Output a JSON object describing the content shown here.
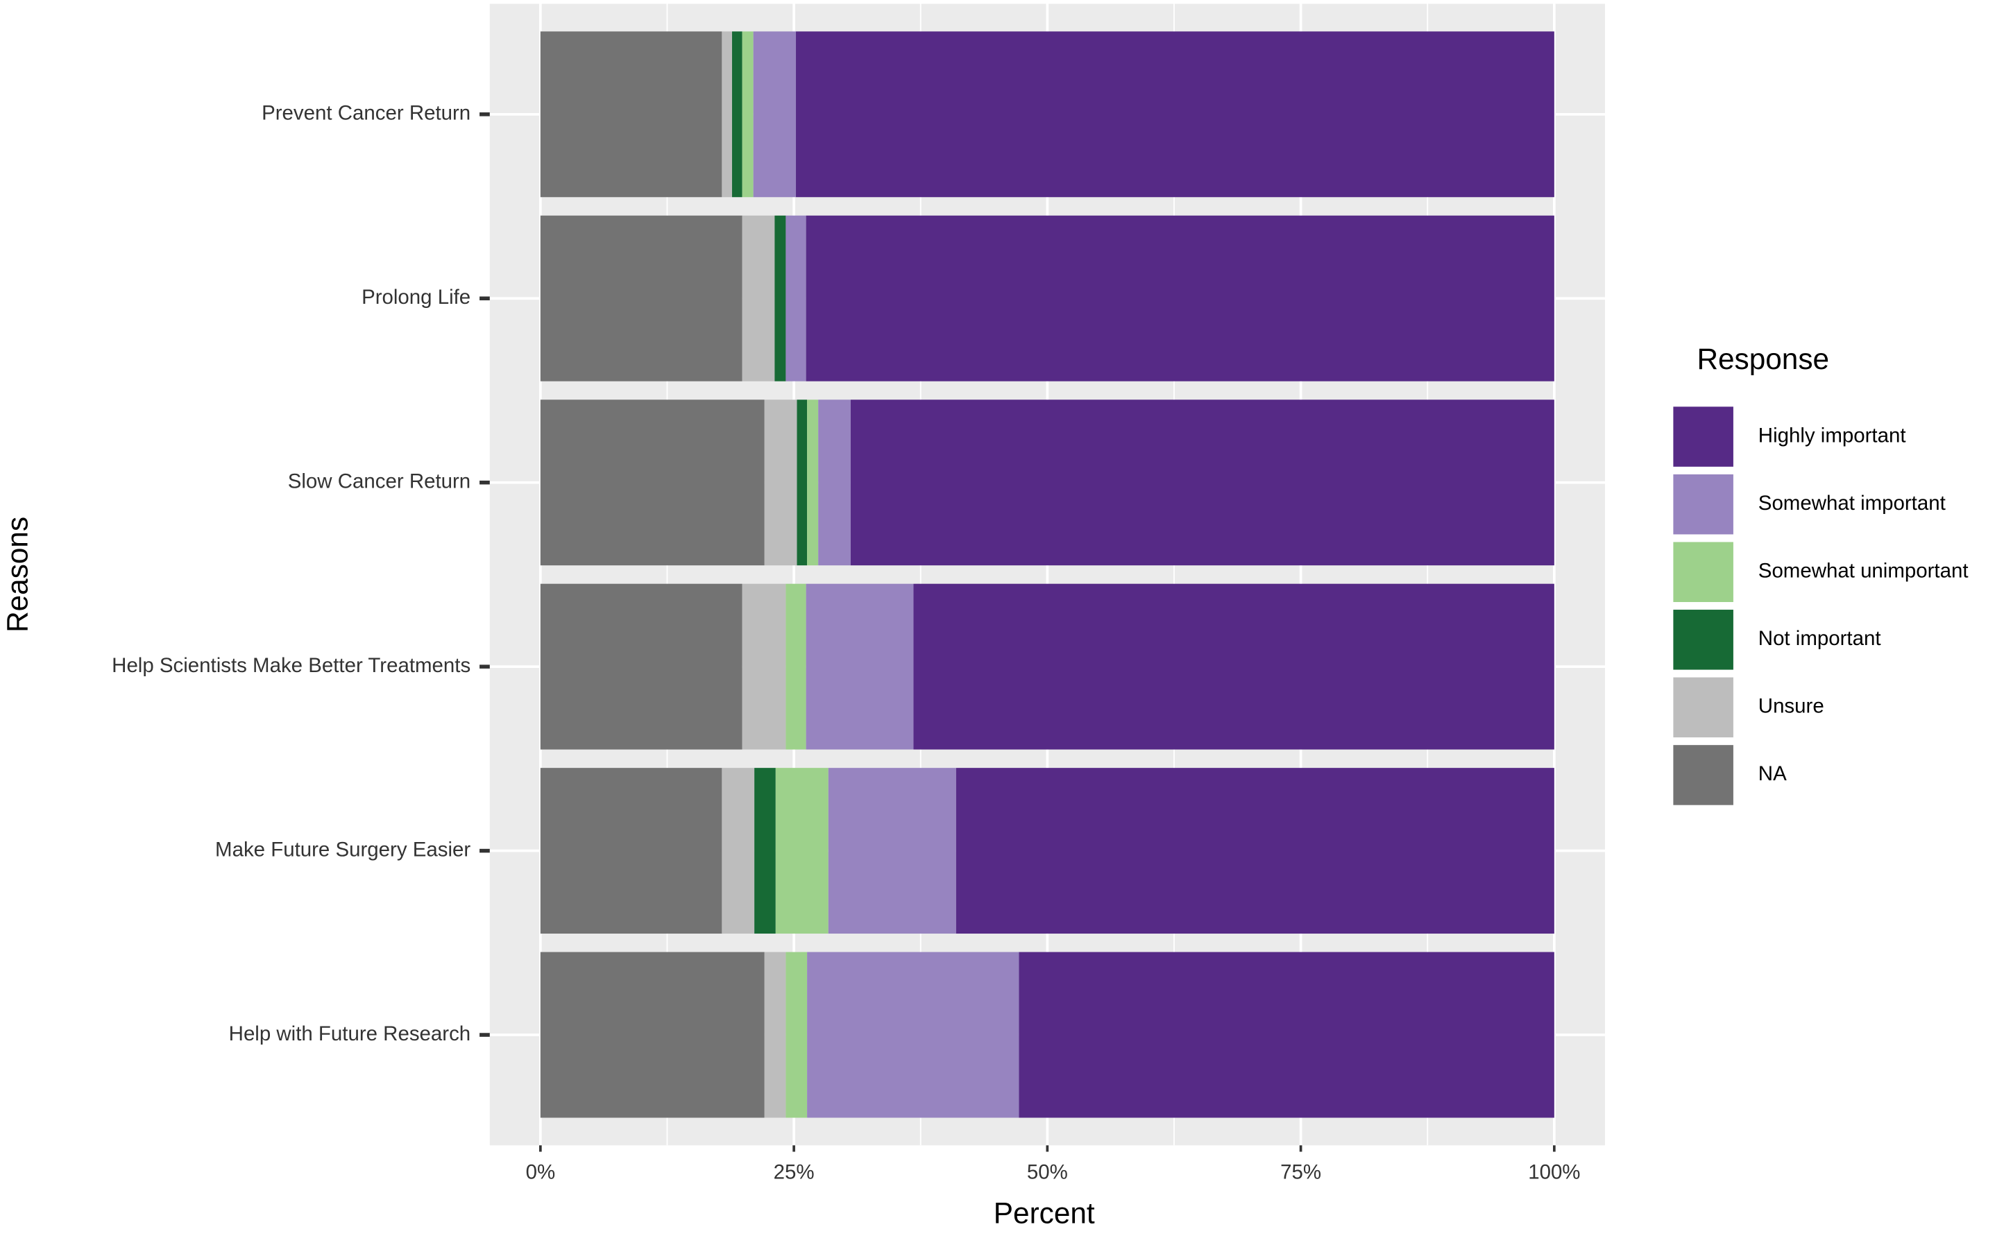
{
  "chart_data": {
    "type": "stacked-barh",
    "x_label": "Percent",
    "y_label": "Reasons",
    "legend_title": "Response",
    "categories": [
      "Prevent Cancer Return",
      "Prolong Life",
      "Slow Cancer Return",
      "Help Scientists Make Better Treatments",
      "Make Future Surgery Easier",
      "Help with Future Research"
    ],
    "series": [
      {
        "name": "Highly important",
        "color": "#562a86",
        "values": [
          74.8,
          73.8,
          69.4,
          63.2,
          59.0,
          52.8
        ]
      },
      {
        "name": "Somewhat important",
        "color": "#9784c0",
        "values": [
          4.2,
          2.0,
          3.2,
          10.6,
          12.6,
          20.9
        ]
      },
      {
        "name": "Somewhat unimportant",
        "color": "#9dd18b",
        "values": [
          1.1,
          0,
          1.1,
          2.0,
          5.2,
          2.1
        ]
      },
      {
        "name": "Not important",
        "color": "#176a35",
        "values": [
          1.0,
          1.1,
          1.0,
          0,
          2.1,
          0
        ]
      },
      {
        "name": "Unsure",
        "color": "#bdbdbd",
        "values": [
          1.0,
          3.2,
          3.2,
          4.3,
          3.2,
          2.1
        ]
      },
      {
        "name": "NA",
        "color": "#737373",
        "values": [
          17.9,
          19.9,
          22.1,
          19.9,
          17.9,
          22.1
        ]
      }
    ],
    "xlim": [
      -5,
      105
    ],
    "xticks": [
      {
        "value": 0,
        "label": "0%"
      },
      {
        "value": 25,
        "label": "25%"
      },
      {
        "value": 50,
        "label": "50%"
      },
      {
        "value": 75,
        "label": "75%"
      },
      {
        "value": 100,
        "label": "100%"
      }
    ],
    "grid": true,
    "legend": "right"
  }
}
